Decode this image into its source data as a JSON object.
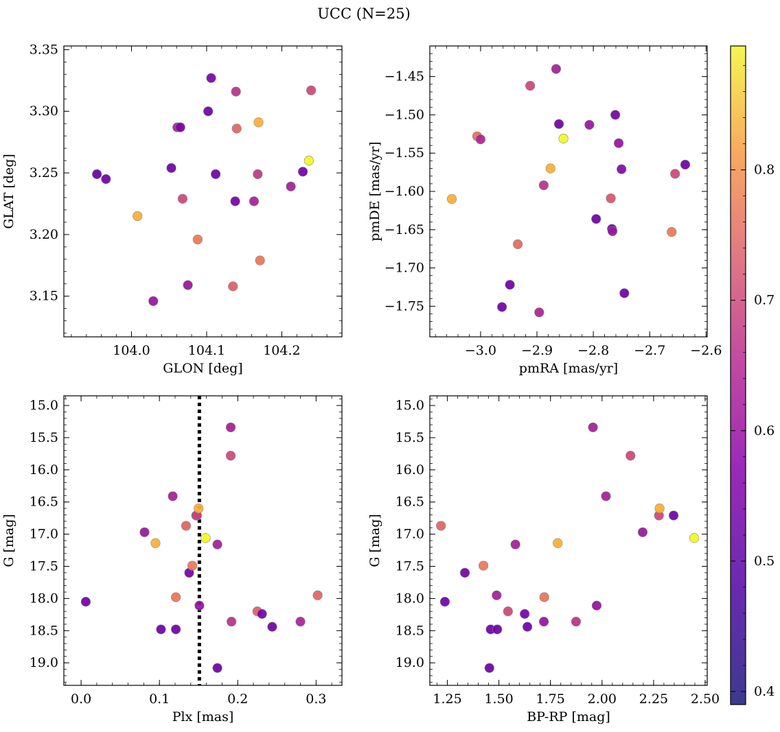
{
  "figure_title": "UCC (N=25)",
  "colorbar": {
    "min": 0.39,
    "max": 0.895,
    "colormap": "plasma",
    "ticks": [
      0.4,
      0.5,
      0.6,
      0.7,
      0.8
    ],
    "tick_labels": [
      "0.4",
      "0.5",
      "0.6",
      "0.7",
      "0.8"
    ]
  },
  "chart_data": [
    {
      "type": "scatter",
      "xlabel": "GLON [deg]",
      "ylabel": "GLAT [deg]",
      "xlim": [
        103.91,
        104.28
      ],
      "ylim": [
        3.117,
        3.353
      ],
      "y_inverted": false,
      "xticks": [
        104.0,
        104.1,
        104.2
      ],
      "xtick_labels": [
        "104.0",
        "104.1",
        "104.2"
      ],
      "yticks": [
        3.15,
        3.2,
        3.25,
        3.3,
        3.35
      ],
      "ytick_labels": [
        "3.15",
        "3.20",
        "3.25",
        "3.30",
        "3.35"
      ],
      "points": [
        {
          "x": 103.954,
          "y": 3.249,
          "c": 0.42
        },
        {
          "x": 103.966,
          "y": 3.245,
          "c": 0.43
        },
        {
          "x": 104.008,
          "y": 3.215,
          "c": 0.79
        },
        {
          "x": 104.029,
          "y": 3.146,
          "c": 0.49
        },
        {
          "x": 104.053,
          "y": 3.254,
          "c": 0.43
        },
        {
          "x": 104.061,
          "y": 3.287,
          "c": 0.52
        },
        {
          "x": 104.065,
          "y": 3.287,
          "c": 0.44
        },
        {
          "x": 104.068,
          "y": 3.229,
          "c": 0.6
        },
        {
          "x": 104.075,
          "y": 3.159,
          "c": 0.5
        },
        {
          "x": 104.088,
          "y": 3.196,
          "c": 0.7
        },
        {
          "x": 104.102,
          "y": 3.3,
          "c": 0.43
        },
        {
          "x": 104.106,
          "y": 3.327,
          "c": 0.45
        },
        {
          "x": 104.112,
          "y": 3.249,
          "c": 0.43
        },
        {
          "x": 104.135,
          "y": 3.158,
          "c": 0.65
        },
        {
          "x": 104.138,
          "y": 3.227,
          "c": 0.44
        },
        {
          "x": 104.139,
          "y": 3.316,
          "c": 0.56
        },
        {
          "x": 104.14,
          "y": 3.286,
          "c": 0.66
        },
        {
          "x": 104.163,
          "y": 3.227,
          "c": 0.52
        },
        {
          "x": 104.168,
          "y": 3.249,
          "c": 0.57
        },
        {
          "x": 104.169,
          "y": 3.291,
          "c": 0.79
        },
        {
          "x": 104.171,
          "y": 3.179,
          "c": 0.69
        },
        {
          "x": 104.212,
          "y": 3.239,
          "c": 0.52
        },
        {
          "x": 104.228,
          "y": 3.251,
          "c": 0.43
        },
        {
          "x": 104.236,
          "y": 3.26,
          "c": 0.895
        },
        {
          "x": 104.239,
          "y": 3.317,
          "c": 0.6
        }
      ]
    },
    {
      "type": "scatter",
      "xlabel": "pmRA [mas/yr]",
      "ylabel": "pmDE [mas/yr]",
      "xlim": [
        -3.09,
        -2.598
      ],
      "ylim": [
        -1.79,
        -1.41
      ],
      "y_inverted": false,
      "xticks": [
        -3.0,
        -2.9,
        -2.8,
        -2.7,
        -2.6
      ],
      "xtick_labels": [
        "−3.0",
        "−2.9",
        "−2.8",
        "−2.7",
        "−2.6"
      ],
      "yticks": [
        -1.75,
        -1.7,
        -1.65,
        -1.6,
        -1.55,
        -1.5,
        -1.45
      ],
      "ytick_labels": [
        "−1.75",
        "−1.70",
        "−1.65",
        "−1.60",
        "−1.55",
        "−1.50",
        "−1.45"
      ],
      "points": [
        {
          "x": -3.051,
          "y": -1.61,
          "c": 0.79
        },
        {
          "x": -3.006,
          "y": -1.528,
          "c": 0.68
        },
        {
          "x": -3.0,
          "y": -1.532,
          "c": 0.53
        },
        {
          "x": -2.962,
          "y": -1.751,
          "c": 0.43
        },
        {
          "x": -2.948,
          "y": -1.722,
          "c": 0.43
        },
        {
          "x": -2.934,
          "y": -1.669,
          "c": 0.67
        },
        {
          "x": -2.912,
          "y": -1.462,
          "c": 0.6
        },
        {
          "x": -2.896,
          "y": -1.758,
          "c": 0.53
        },
        {
          "x": -2.888,
          "y": -1.592,
          "c": 0.56
        },
        {
          "x": -2.876,
          "y": -1.57,
          "c": 0.79
        },
        {
          "x": -2.866,
          "y": -1.44,
          "c": 0.52
        },
        {
          "x": -2.861,
          "y": -1.512,
          "c": 0.43
        },
        {
          "x": -2.853,
          "y": -1.531,
          "c": 0.895
        },
        {
          "x": -2.807,
          "y": -1.513,
          "c": 0.5
        },
        {
          "x": -2.795,
          "y": -1.636,
          "c": 0.43
        },
        {
          "x": -2.769,
          "y": -1.609,
          "c": 0.63
        },
        {
          "x": -2.767,
          "y": -1.649,
          "c": 0.43
        },
        {
          "x": -2.766,
          "y": -1.652,
          "c": 0.5
        },
        {
          "x": -2.761,
          "y": -1.5,
          "c": 0.44
        },
        {
          "x": -2.755,
          "y": -1.537,
          "c": 0.49
        },
        {
          "x": -2.75,
          "y": -1.571,
          "c": 0.46
        },
        {
          "x": -2.745,
          "y": -1.733,
          "c": 0.43
        },
        {
          "x": -2.661,
          "y": -1.653,
          "c": 0.7
        },
        {
          "x": -2.655,
          "y": -1.577,
          "c": 0.6
        },
        {
          "x": -2.637,
          "y": -1.565,
          "c": 0.43
        }
      ]
    },
    {
      "type": "scatter",
      "xlabel": "Plx [mas]",
      "ylabel": "G [mag]",
      "xlim": [
        -0.022,
        0.333
      ],
      "ylim": [
        19.35,
        14.85
      ],
      "y_inverted": true,
      "xticks": [
        0.0,
        0.1,
        0.2,
        0.3
      ],
      "xtick_labels": [
        "0.0",
        "0.1",
        "0.2",
        "0.3"
      ],
      "yticks": [
        15.0,
        15.5,
        16.0,
        16.5,
        17.0,
        17.5,
        18.0,
        18.5,
        19.0
      ],
      "ytick_labels": [
        "15.0",
        "15.5",
        "16.0",
        "16.5",
        "17.0",
        "17.5",
        "18.0",
        "18.5",
        "19.0"
      ],
      "vline": {
        "x": 0.151,
        "style": "dotted"
      },
      "points": [
        {
          "x": 0.006,
          "y": 18.05,
          "c": 0.43
        },
        {
          "x": 0.081,
          "y": 16.97,
          "c": 0.5
        },
        {
          "x": 0.095,
          "y": 17.14,
          "c": 0.79
        },
        {
          "x": 0.102,
          "y": 18.48,
          "c": 0.43
        },
        {
          "x": 0.117,
          "y": 16.41,
          "c": 0.52
        },
        {
          "x": 0.121,
          "y": 18.48,
          "c": 0.43
        },
        {
          "x": 0.121,
          "y": 17.98,
          "c": 0.69
        },
        {
          "x": 0.134,
          "y": 16.87,
          "c": 0.66
        },
        {
          "x": 0.138,
          "y": 17.6,
          "c": 0.44
        },
        {
          "x": 0.142,
          "y": 17.49,
          "c": 0.7
        },
        {
          "x": 0.147,
          "y": 16.71,
          "c": 0.43
        },
        {
          "x": 0.148,
          "y": 16.71,
          "c": 0.6
        },
        {
          "x": 0.15,
          "y": 16.6,
          "c": 0.79
        },
        {
          "x": 0.151,
          "y": 18.11,
          "c": 0.49
        },
        {
          "x": 0.159,
          "y": 17.06,
          "c": 0.895
        },
        {
          "x": 0.174,
          "y": 17.16,
          "c": 0.52
        },
        {
          "x": 0.174,
          "y": 19.08,
          "c": 0.43
        },
        {
          "x": 0.191,
          "y": 15.34,
          "c": 0.52
        },
        {
          "x": 0.191,
          "y": 15.78,
          "c": 0.6
        },
        {
          "x": 0.192,
          "y": 18.36,
          "c": 0.56
        },
        {
          "x": 0.225,
          "y": 18.2,
          "c": 0.65
        },
        {
          "x": 0.231,
          "y": 18.24,
          "c": 0.44
        },
        {
          "x": 0.244,
          "y": 18.44,
          "c": 0.43
        },
        {
          "x": 0.28,
          "y": 18.36,
          "c": 0.53
        },
        {
          "x": 0.302,
          "y": 17.95,
          "c": 0.66
        }
      ]
    },
    {
      "type": "scatter",
      "xlabel": "BP-RP [mag]",
      "ylabel": "G [mag]",
      "xlim": [
        1.165,
        2.51
      ],
      "ylim": [
        19.35,
        14.85
      ],
      "y_inverted": true,
      "xticks": [
        1.25,
        1.5,
        1.75,
        2.0,
        2.25,
        2.5
      ],
      "xtick_labels": [
        "1.25",
        "1.50",
        "1.75",
        "2.00",
        "2.25",
        "2.50"
      ],
      "yticks": [
        15.0,
        15.5,
        16.0,
        16.5,
        17.0,
        17.5,
        18.0,
        18.5,
        19.0
      ],
      "ytick_labels": [
        "15.0",
        "15.5",
        "16.0",
        "16.5",
        "17.0",
        "17.5",
        "18.0",
        "18.5",
        "19.0"
      ],
      "points": [
        {
          "x": 1.219,
          "y": 16.87,
          "c": 0.66
        },
        {
          "x": 1.238,
          "y": 18.05,
          "c": 0.43
        },
        {
          "x": 1.335,
          "y": 17.6,
          "c": 0.44
        },
        {
          "x": 1.425,
          "y": 17.49,
          "c": 0.7
        },
        {
          "x": 1.454,
          "y": 19.08,
          "c": 0.43
        },
        {
          "x": 1.46,
          "y": 18.48,
          "c": 0.43
        },
        {
          "x": 1.489,
          "y": 17.95,
          "c": 0.52
        },
        {
          "x": 1.492,
          "y": 18.48,
          "c": 0.43
        },
        {
          "x": 1.544,
          "y": 18.2,
          "c": 0.6
        },
        {
          "x": 1.58,
          "y": 17.16,
          "c": 0.52
        },
        {
          "x": 1.625,
          "y": 18.24,
          "c": 0.44
        },
        {
          "x": 1.638,
          "y": 18.44,
          "c": 0.43
        },
        {
          "x": 1.718,
          "y": 18.36,
          "c": 0.49
        },
        {
          "x": 1.72,
          "y": 17.98,
          "c": 0.69
        },
        {
          "x": 1.785,
          "y": 17.14,
          "c": 0.79
        },
        {
          "x": 1.874,
          "y": 18.36,
          "c": 0.56
        },
        {
          "x": 1.956,
          "y": 15.34,
          "c": 0.52
        },
        {
          "x": 1.974,
          "y": 18.11,
          "c": 0.49
        },
        {
          "x": 2.019,
          "y": 16.41,
          "c": 0.52
        },
        {
          "x": 2.138,
          "y": 15.78,
          "c": 0.6
        },
        {
          "x": 2.197,
          "y": 16.97,
          "c": 0.5
        },
        {
          "x": 2.276,
          "y": 16.71,
          "c": 0.6
        },
        {
          "x": 2.279,
          "y": 16.6,
          "c": 0.79
        },
        {
          "x": 2.347,
          "y": 16.71,
          "c": 0.43
        },
        {
          "x": 2.447,
          "y": 17.06,
          "c": 0.895
        }
      ]
    }
  ]
}
